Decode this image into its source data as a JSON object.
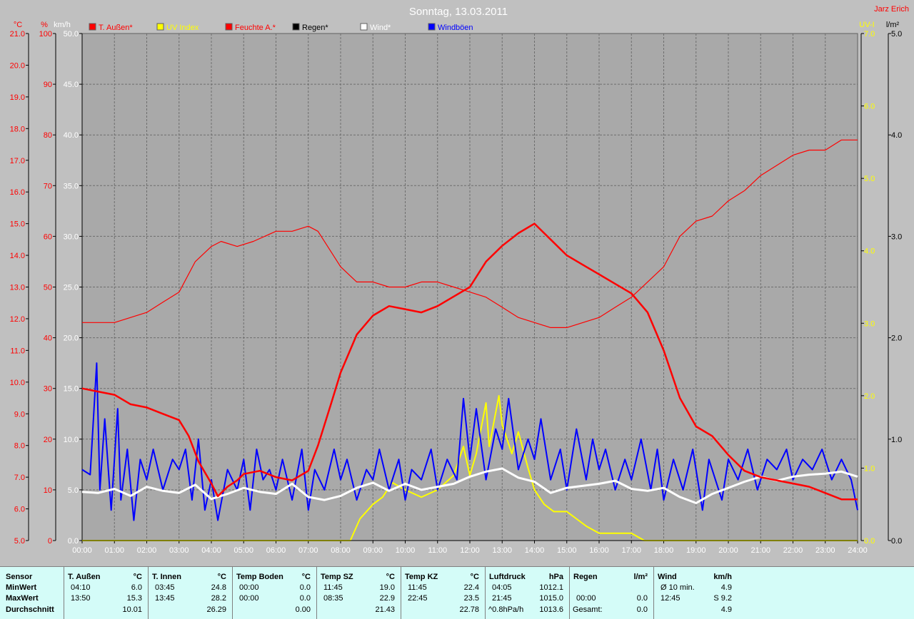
{
  "header": {
    "title": "Sonntag, 13.03.2011",
    "author": "Jarz Erich"
  },
  "axes": {
    "left_units": [
      "°C",
      "%",
      "km/h"
    ],
    "right_units": [
      "UV-I",
      "l/m²"
    ],
    "temp_ticks": [
      "21.0",
      "20.0",
      "19.0",
      "18.0",
      "17.0",
      "16.0",
      "15.0",
      "14.0",
      "13.0",
      "12.0",
      "11.0",
      "10.0",
      "9.0",
      "8.0",
      "7.0",
      "6.0",
      "5.0"
    ],
    "hum_ticks": [
      "100",
      "90",
      "80",
      "70",
      "60",
      "50",
      "40",
      "30",
      "20",
      "10",
      "0"
    ],
    "wind_ticks": [
      "50.0",
      "45.0",
      "40.0",
      "35.0",
      "30.0",
      "25.0",
      "20.0",
      "15.0",
      "10.0",
      "5.0",
      "0.0"
    ],
    "uv_ticks": [
      "7.0",
      "6.0",
      "5.0",
      "4.0",
      "3.0",
      "2.0",
      "1.0",
      "0.0"
    ],
    "rain_ticks": [
      "5.0",
      "4.0",
      "3.0",
      "2.0",
      "1.0",
      "0.0"
    ],
    "time_ticks": [
      "00:00",
      "01:00",
      "02:00",
      "03:00",
      "04:00",
      "05:00",
      "06:00",
      "07:00",
      "08:00",
      "09:00",
      "10:00",
      "11:00",
      "12:00",
      "13:00",
      "14:00",
      "15:00",
      "16:00",
      "17:00",
      "18:00",
      "19:00",
      "20:00",
      "21:00",
      "22:00",
      "23:00",
      "24:00"
    ]
  },
  "colors": {
    "temperature": "#ff0000",
    "humidity": "#ff0000",
    "uv": "#ffff00",
    "rain": "#000000",
    "wind": "#ffffff",
    "gusts": "#0000ff",
    "background": "#c0c0c0"
  },
  "chart_data": {
    "type": "line",
    "title": "Sonntag, 13.03.2011",
    "xlim": [
      0,
      24
    ],
    "series": [
      {
        "name": "T. Außen*",
        "axis": "temp",
        "ylim": [
          5,
          21
        ],
        "x": [
          0,
          1,
          1.5,
          2,
          2.5,
          3,
          3.3,
          3.6,
          4,
          4.2,
          4.5,
          4.8,
          5,
          5.5,
          6,
          6.5,
          7,
          7.3,
          7.7,
          8,
          8.5,
          9,
          9.5,
          10,
          10.5,
          11,
          11.5,
          12,
          12.5,
          13,
          13.5,
          14,
          14.5,
          15,
          15.5,
          16,
          16.5,
          17,
          17.5,
          18,
          18.5,
          19,
          19.5,
          20,
          20.5,
          21,
          21.5,
          22,
          22.5,
          23,
          23.5,
          24
        ],
        "y": [
          9.8,
          9.6,
          9.3,
          9.2,
          9.0,
          8.8,
          8.3,
          7.5,
          6.8,
          6.4,
          6.7,
          6.9,
          7.1,
          7.2,
          7.0,
          6.9,
          7.2,
          8.0,
          9.3,
          10.3,
          11.5,
          12.1,
          12.4,
          12.3,
          12.2,
          12.4,
          12.7,
          13.0,
          13.8,
          14.3,
          14.7,
          15.0,
          14.5,
          14.0,
          13.7,
          13.4,
          13.1,
          12.8,
          12.2,
          11.0,
          9.5,
          8.6,
          8.3,
          7.7,
          7.2,
          7.0,
          6.9,
          6.8,
          6.7,
          6.5,
          6.3,
          6.3
        ]
      },
      {
        "name": "Feuchte A.*",
        "axis": "hum",
        "ylim": [
          0,
          100
        ],
        "x": [
          0,
          1,
          1.5,
          2,
          2.5,
          3,
          3.5,
          4,
          4.3,
          4.8,
          5.3,
          6,
          6.5,
          7,
          7.3,
          7.7,
          8,
          8.5,
          9,
          9.5,
          10,
          10.5,
          11,
          11.5,
          12,
          12.5,
          13,
          13.5,
          14,
          14.5,
          15,
          15.5,
          16,
          16.5,
          17,
          17.5,
          18,
          18.5,
          19,
          19.5,
          20,
          20.5,
          21,
          21.5,
          22,
          22.5,
          23,
          23.5,
          24
        ],
        "y": [
          43,
          43,
          44,
          45,
          47,
          49,
          55,
          58,
          59,
          58,
          59,
          61,
          61,
          62,
          61,
          57,
          54,
          51,
          51,
          50,
          50,
          51,
          51,
          50,
          49,
          48,
          46,
          44,
          43,
          42,
          42,
          43,
          44,
          46,
          48,
          51,
          54,
          60,
          63,
          64,
          67,
          69,
          72,
          74,
          76,
          77,
          77,
          79,
          79
        ]
      },
      {
        "name": "UV Index",
        "axis": "uv",
        "ylim": [
          0,
          7
        ],
        "x": [
          0,
          8.3,
          8.6,
          9,
          9.3,
          9.6,
          10,
          10.5,
          11,
          11.5,
          11.8,
          12,
          12.2,
          12.5,
          12.6,
          12.9,
          13,
          13.3,
          13.5,
          13.8,
          14,
          14.3,
          14.6,
          15,
          15.3,
          15.6,
          16,
          16.4,
          17,
          17.4,
          24
        ],
        "y": [
          0,
          0,
          0.3,
          0.5,
          0.6,
          0.8,
          0.7,
          0.6,
          0.7,
          0.9,
          1.3,
          0.9,
          1.2,
          1.9,
          1.3,
          2.0,
          1.6,
          1.2,
          1.5,
          1.0,
          0.7,
          0.5,
          0.4,
          0.4,
          0.3,
          0.2,
          0.1,
          0.1,
          0.1,
          0,
          0
        ]
      },
      {
        "name": "Regen*",
        "axis": "rain",
        "ylim": [
          0,
          5
        ],
        "x": [
          0,
          24
        ],
        "y": [
          0,
          0
        ]
      },
      {
        "name": "Wind*",
        "axis": "wind",
        "ylim": [
          0,
          50
        ],
        "x": [
          0,
          0.5,
          1,
          1.5,
          2,
          2.5,
          3,
          3.5,
          4,
          4.5,
          5,
          5.5,
          6,
          6.5,
          7,
          7.5,
          8,
          8.5,
          9,
          9.5,
          10,
          10.5,
          11,
          11.5,
          12,
          12.5,
          13,
          13.5,
          14,
          14.5,
          15,
          15.5,
          16,
          16.5,
          17,
          17.5,
          18,
          18.5,
          19,
          19.5,
          20,
          20.5,
          21,
          21.5,
          22,
          22.5,
          23,
          23.5,
          24
        ],
        "y": [
          4.8,
          4.7,
          5.1,
          4.4,
          5.3,
          4.9,
          4.7,
          5.5,
          4.1,
          4.6,
          5.2,
          4.8,
          4.6,
          5.6,
          4.3,
          4.0,
          4.4,
          5.2,
          5.7,
          4.9,
          5.6,
          5.0,
          5.3,
          5.6,
          6.3,
          6.8,
          7.1,
          6.2,
          5.8,
          4.7,
          5.2,
          5.4,
          5.6,
          5.9,
          5.1,
          4.9,
          5.2,
          4.3,
          3.7,
          4.6,
          5.2,
          5.8,
          6.3,
          5.9,
          6.3,
          6.5,
          6.6,
          6.8,
          6.3
        ]
      },
      {
        "name": "Windböen",
        "axis": "wind",
        "ylim": [
          0,
          50
        ],
        "x": [
          0,
          0.25,
          0.45,
          0.55,
          0.7,
          0.9,
          1.1,
          1.2,
          1.4,
          1.6,
          1.8,
          2,
          2.2,
          2.5,
          2.8,
          3,
          3.2,
          3.4,
          3.6,
          3.8,
          4,
          4.2,
          4.5,
          4.8,
          5,
          5.2,
          5.4,
          5.6,
          5.8,
          6,
          6.2,
          6.5,
          6.8,
          7,
          7.2,
          7.5,
          7.8,
          8,
          8.2,
          8.5,
          8.8,
          9,
          9.2,
          9.5,
          9.8,
          10,
          10.2,
          10.5,
          10.8,
          11,
          11.3,
          11.6,
          11.8,
          12,
          12.2,
          12.5,
          12.8,
          13,
          13.2,
          13.5,
          13.8,
          14,
          14.2,
          14.5,
          14.8,
          15,
          15.3,
          15.6,
          15.8,
          16,
          16.2,
          16.5,
          16.8,
          17,
          17.3,
          17.6,
          17.8,
          18,
          18.3,
          18.6,
          18.9,
          19.2,
          19.4,
          19.6,
          19.8,
          20,
          20.3,
          20.6,
          20.9,
          21.2,
          21.5,
          21.8,
          22,
          22.3,
          22.6,
          22.9,
          23.2,
          23.5,
          23.8,
          24
        ],
        "y": [
          7,
          6.5,
          17.5,
          5,
          12,
          3,
          13,
          4,
          9,
          2,
          8,
          6,
          9,
          5,
          8,
          7,
          9,
          4,
          10,
          3,
          6,
          2,
          7,
          5,
          8,
          3,
          9,
          6,
          7,
          5,
          8,
          4,
          9,
          3,
          7,
          5,
          9,
          6,
          8,
          4,
          7,
          6,
          9,
          5,
          8,
          4,
          7,
          6,
          9,
          5,
          8,
          6,
          14,
          8,
          13,
          6,
          11,
          9,
          14,
          7,
          10,
          8,
          12,
          6,
          9,
          5,
          11,
          6,
          10,
          7,
          9,
          5,
          8,
          6,
          10,
          5,
          9,
          4,
          8,
          5,
          9,
          3,
          8,
          6,
          4,
          8,
          6,
          9,
          5,
          8,
          7,
          9,
          6,
          8,
          7,
          9,
          6,
          8,
          6,
          3
        ]
      }
    ]
  },
  "legend": [
    {
      "label": "T. Außen*",
      "color": "#ff0000"
    },
    {
      "label": "UV Index",
      "color": "#ffff00"
    },
    {
      "label": "Feuchte A.*",
      "color": "#ff0000"
    },
    {
      "label": "Regen*",
      "color": "#000000"
    },
    {
      "label": "Wind*",
      "color": "#ffffff"
    },
    {
      "label": "Windböen",
      "color": "#0000ff"
    }
  ],
  "stats": {
    "labels": {
      "sensor": "Sensor",
      "min": "MinWert",
      "max": "MaxWert",
      "avg": "Durchschnitt"
    },
    "sections": [
      {
        "name": "T. Außen",
        "unit": "°C",
        "min_time": "04:10",
        "min_val": "6.0",
        "max_time": "13:50",
        "max_val": "15.3",
        "avg_label": "",
        "avg": "10.01"
      },
      {
        "name": "T. Innen",
        "unit": "°C",
        "min_time": "03:45",
        "min_val": "24.8",
        "max_time": "13:45",
        "max_val": "28.2",
        "avg_label": "",
        "avg": "26.29"
      },
      {
        "name": "Temp Boden",
        "unit": "°C",
        "min_time": "00:00",
        "min_val": "0.0",
        "max_time": "00:00",
        "max_val": "0.0",
        "avg_label": "",
        "avg": "0.00"
      },
      {
        "name": "Temp SZ",
        "unit": "°C",
        "min_time": "11:45",
        "min_val": "19.0",
        "max_time": "08:35",
        "max_val": "22.9",
        "avg_label": "",
        "avg": "21.43"
      },
      {
        "name": "Temp KZ",
        "unit": "°C",
        "min_time": "11:45",
        "min_val": "22.4",
        "max_time": "22:45",
        "max_val": "23.5",
        "avg_label": "",
        "avg": "22.78"
      },
      {
        "name": "Luftdruck",
        "unit": "hPa",
        "min_time": "04:05",
        "min_val": "1012.1",
        "max_time": "21:45",
        "max_val": "1015.0",
        "avg_label": "^0.8hPa/h",
        "avg": "1013.6"
      },
      {
        "name": "Regen",
        "unit": "l/m²",
        "min_time": "",
        "min_val": "",
        "max_time": "00:00",
        "max_val": "0.0",
        "avg_label": "Gesamt:",
        "avg": "0.0"
      },
      {
        "name": "Wind",
        "unit": "km/h",
        "min_time": "Ø 10 min.",
        "min_val": "4.9",
        "max_time": "12:45",
        "max_val": "S 9.2",
        "avg_label": "",
        "avg": "4.9"
      }
    ]
  }
}
